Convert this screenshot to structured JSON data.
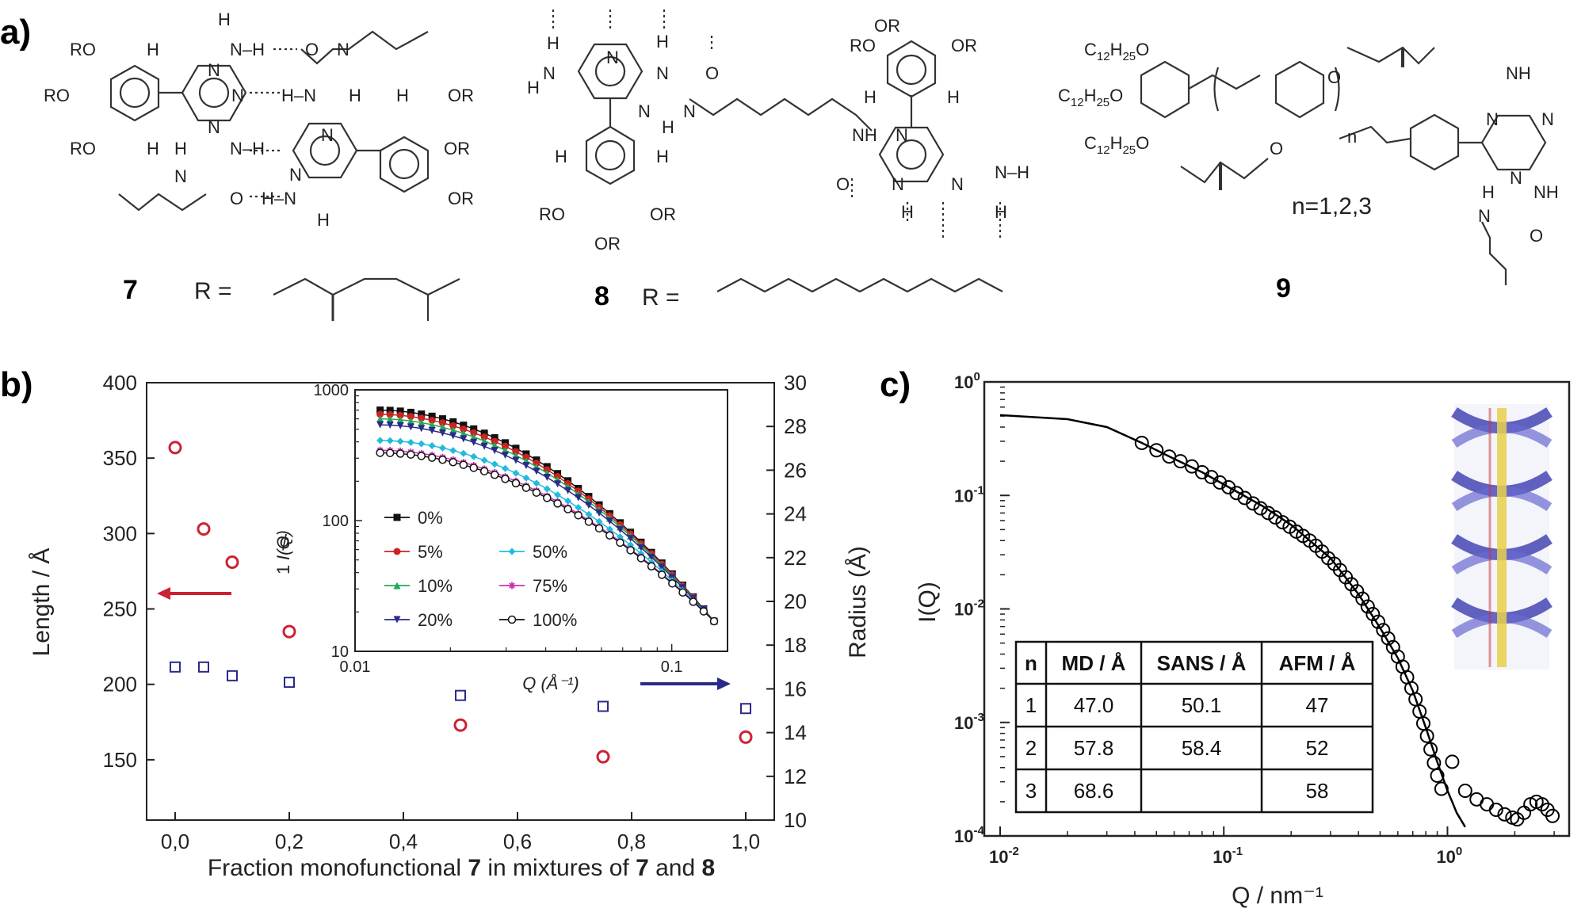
{
  "panel_a": {
    "label": "a)",
    "compounds": [
      {
        "number": "7",
        "r_label": "R ="
      },
      {
        "number": "8",
        "r_label": "R ="
      },
      {
        "number": "9",
        "n_label": "n=1,2,3"
      }
    ],
    "atoms": {
      "RO": "RO",
      "OR": "OR",
      "H": "H",
      "N": "N",
      "O": "O",
      "NH": "NH",
      "N_H": "N–H",
      "H_N": "H–N",
      "c12": "C",
      "c12sub": "12",
      "h25": "H",
      "h25sub": "25",
      "o": "O",
      "n": "n"
    }
  },
  "panel_b": {
    "label": "b)",
    "xlabel_prefix": "Fraction monofunctional ",
    "xlabel_b1": "7",
    "xlabel_mid": " in mixtures of ",
    "xlabel_b2": "7",
    "xlabel_and": " and ",
    "xlabel_b3": "8",
    "ylabel_left": "Length / Å",
    "ylabel_right": "Radius (Å)",
    "xticks": [
      "0,0",
      "0,2",
      "0,4",
      "0,6",
      "0,8",
      "1,0"
    ],
    "yticks_left": [
      "150",
      "200",
      "250",
      "300",
      "350",
      "400"
    ],
    "yticks_right": [
      "10",
      "12",
      "14",
      "16",
      "18",
      "20",
      "22",
      "24",
      "26",
      "28",
      "30"
    ],
    "inset": {
      "ylabel_num": "1",
      "ylabel_den": "ϕ",
      "ylabel_rest": "I(Q)",
      "xlabel": "Q (Å⁻¹)",
      "xticks": [
        "0.01",
        "0.1"
      ],
      "yticks": [
        "10",
        "100",
        "1000"
      ],
      "legend": [
        "0%",
        "5%",
        "10%",
        "20%",
        "50%",
        "75%",
        "100%"
      ]
    }
  },
  "panel_c": {
    "label": "c)",
    "xlabel": "Q / nm⁻¹",
    "ylabel": "I(Q)",
    "xticks": [
      {
        "base": "10",
        "exp": "-2"
      },
      {
        "base": "10",
        "exp": "-1"
      },
      {
        "base": "10",
        "exp": "0"
      }
    ],
    "yticks": [
      {
        "base": "10",
        "exp": "0"
      },
      {
        "base": "10",
        "exp": "-1"
      },
      {
        "base": "10",
        "exp": "-2"
      },
      {
        "base": "10",
        "exp": "-3"
      },
      {
        "base": "10",
        "exp": "-4"
      }
    ],
    "table": {
      "headers": [
        "n",
        "MD / Å",
        "SANS / Å",
        "AFM / Å"
      ],
      "rows": [
        [
          "1",
          "47.0",
          "50.1",
          "47"
        ],
        [
          "2",
          "57.8",
          "58.4",
          "52"
        ],
        [
          "3",
          "68.6",
          "",
          "58"
        ]
      ]
    }
  },
  "colors": {
    "red": "#cc2233",
    "blue": "#2a2a8a",
    "black": "#000000"
  },
  "chart_data": [
    {
      "type": "scatter",
      "panel": "b",
      "xlim": [
        -0.05,
        1.05
      ],
      "ylim_left": [
        110,
        400
      ],
      "ylim_right": [
        10,
        30
      ],
      "series": [
        {
          "axis": "left",
          "marker": "circle",
          "color": "#cc2233",
          "x": [
            0.0,
            0.05,
            0.1,
            0.2,
            0.5,
            0.75,
            1.0
          ],
          "y": [
            357,
            303,
            281,
            235,
            173,
            152,
            165
          ]
        },
        {
          "axis": "right",
          "marker": "square",
          "color": "#2a2a8a",
          "x": [
            0.0,
            0.05,
            0.1,
            0.2,
            0.5,
            0.75,
            1.0
          ],
          "y": [
            17.0,
            17.0,
            16.6,
            16.3,
            15.7,
            15.2,
            15.1
          ]
        }
      ]
    },
    {
      "type": "line",
      "panel": "b-inset",
      "xscale": "log",
      "yscale": "log",
      "xlim": [
        0.01,
        0.15
      ],
      "ylim": [
        10,
        1000
      ],
      "series": [
        {
          "name": "0%",
          "color": "#111111",
          "marker": "square",
          "I0": 700
        },
        {
          "name": "5%",
          "color": "#cc2222",
          "marker": "circle",
          "I0": 650
        },
        {
          "name": "10%",
          "color": "#22aa55",
          "marker": "triangle-up",
          "I0": 600
        },
        {
          "name": "20%",
          "color": "#2a2a8a",
          "marker": "triangle-down",
          "I0": 540
        },
        {
          "name": "50%",
          "color": "#22bbdd",
          "marker": "diamond",
          "I0": 410
        },
        {
          "name": "75%",
          "color": "#cc33aa",
          "marker": "star",
          "I0": 345
        },
        {
          "name": "100%",
          "color": "#111111",
          "marker": "open-circle",
          "I0": 330
        }
      ],
      "q": [
        0.012,
        0.0129,
        0.0139,
        0.015,
        0.0162,
        0.0175,
        0.0189,
        0.0204,
        0.022,
        0.0237,
        0.0256,
        0.0276,
        0.0298,
        0.0322,
        0.0347,
        0.0374,
        0.0404,
        0.0436,
        0.047,
        0.0507,
        0.0547,
        0.059,
        0.0637,
        0.0687,
        0.0741,
        0.08,
        0.0863,
        0.0931,
        0.1004,
        0.1083,
        0.1169,
        0.1261,
        0.136
      ],
      "end_value": 17
    },
    {
      "type": "scatter",
      "panel": "c",
      "xscale": "log",
      "yscale": "log",
      "xlim": [
        0.01,
        3.5
      ],
      "ylim": [
        0.0001,
        1
      ],
      "series": [
        {
          "name": "data",
          "marker": "open-circle",
          "x": [
            0.043,
            0.05,
            0.057,
            0.064,
            0.072,
            0.08,
            0.088,
            0.096,
            0.105,
            0.114,
            0.124,
            0.135,
            0.146,
            0.158,
            0.17,
            0.183,
            0.197,
            0.211,
            0.226,
            0.242,
            0.258,
            0.275,
            0.293,
            0.312,
            0.331,
            0.351,
            0.372,
            0.394,
            0.417,
            0.44,
            0.464,
            0.49,
            0.516,
            0.543,
            0.571,
            0.6,
            0.63,
            0.66,
            0.69,
            0.72,
            0.75,
            0.78,
            0.81,
            0.84,
            0.87,
            0.9,
            0.94,
            1.05,
            1.2,
            1.35,
            1.5,
            1.65,
            1.8,
            1.95,
            2.05,
            2.2,
            2.35,
            2.5,
            2.65,
            2.8,
            2.95
          ],
          "y": [
            0.29,
            0.25,
            0.22,
            0.2,
            0.18,
            0.16,
            0.145,
            0.13,
            0.118,
            0.105,
            0.095,
            0.085,
            0.077,
            0.07,
            0.064,
            0.058,
            0.053,
            0.048,
            0.044,
            0.04,
            0.036,
            0.032,
            0.028,
            0.025,
            0.022,
            0.019,
            0.0165,
            0.0143,
            0.0123,
            0.0105,
            0.009,
            0.0077,
            0.0065,
            0.0055,
            0.0046,
            0.0038,
            0.0031,
            0.0025,
            0.002,
            0.0016,
            0.00125,
            0.00098,
            0.00076,
            0.00058,
            0.00044,
            0.00034,
            0.00026,
            0.00045,
            0.00025,
            0.00021,
            0.00019,
            0.00017,
            0.000155,
            0.000145,
            0.00014,
            0.00016,
            0.00019,
            0.0002,
            0.00019,
            0.00017,
            0.00015
          ]
        },
        {
          "name": "fit",
          "marker": "line",
          "x": [
            0.01,
            0.02,
            0.03,
            0.043,
            0.06,
            0.08,
            0.1,
            0.15,
            0.2,
            0.3,
            0.4,
            0.5,
            0.6,
            0.7,
            0.8,
            0.9,
            1.0,
            1.05,
            1.1,
            1.2
          ],
          "y": [
            0.51,
            0.47,
            0.4,
            0.29,
            0.21,
            0.16,
            0.125,
            0.08,
            0.055,
            0.028,
            0.0135,
            0.0068,
            0.0037,
            0.0019,
            0.0009,
            0.00045,
            0.00025,
            0.0002,
            0.00016,
            0.00012
          ]
        }
      ]
    }
  ]
}
